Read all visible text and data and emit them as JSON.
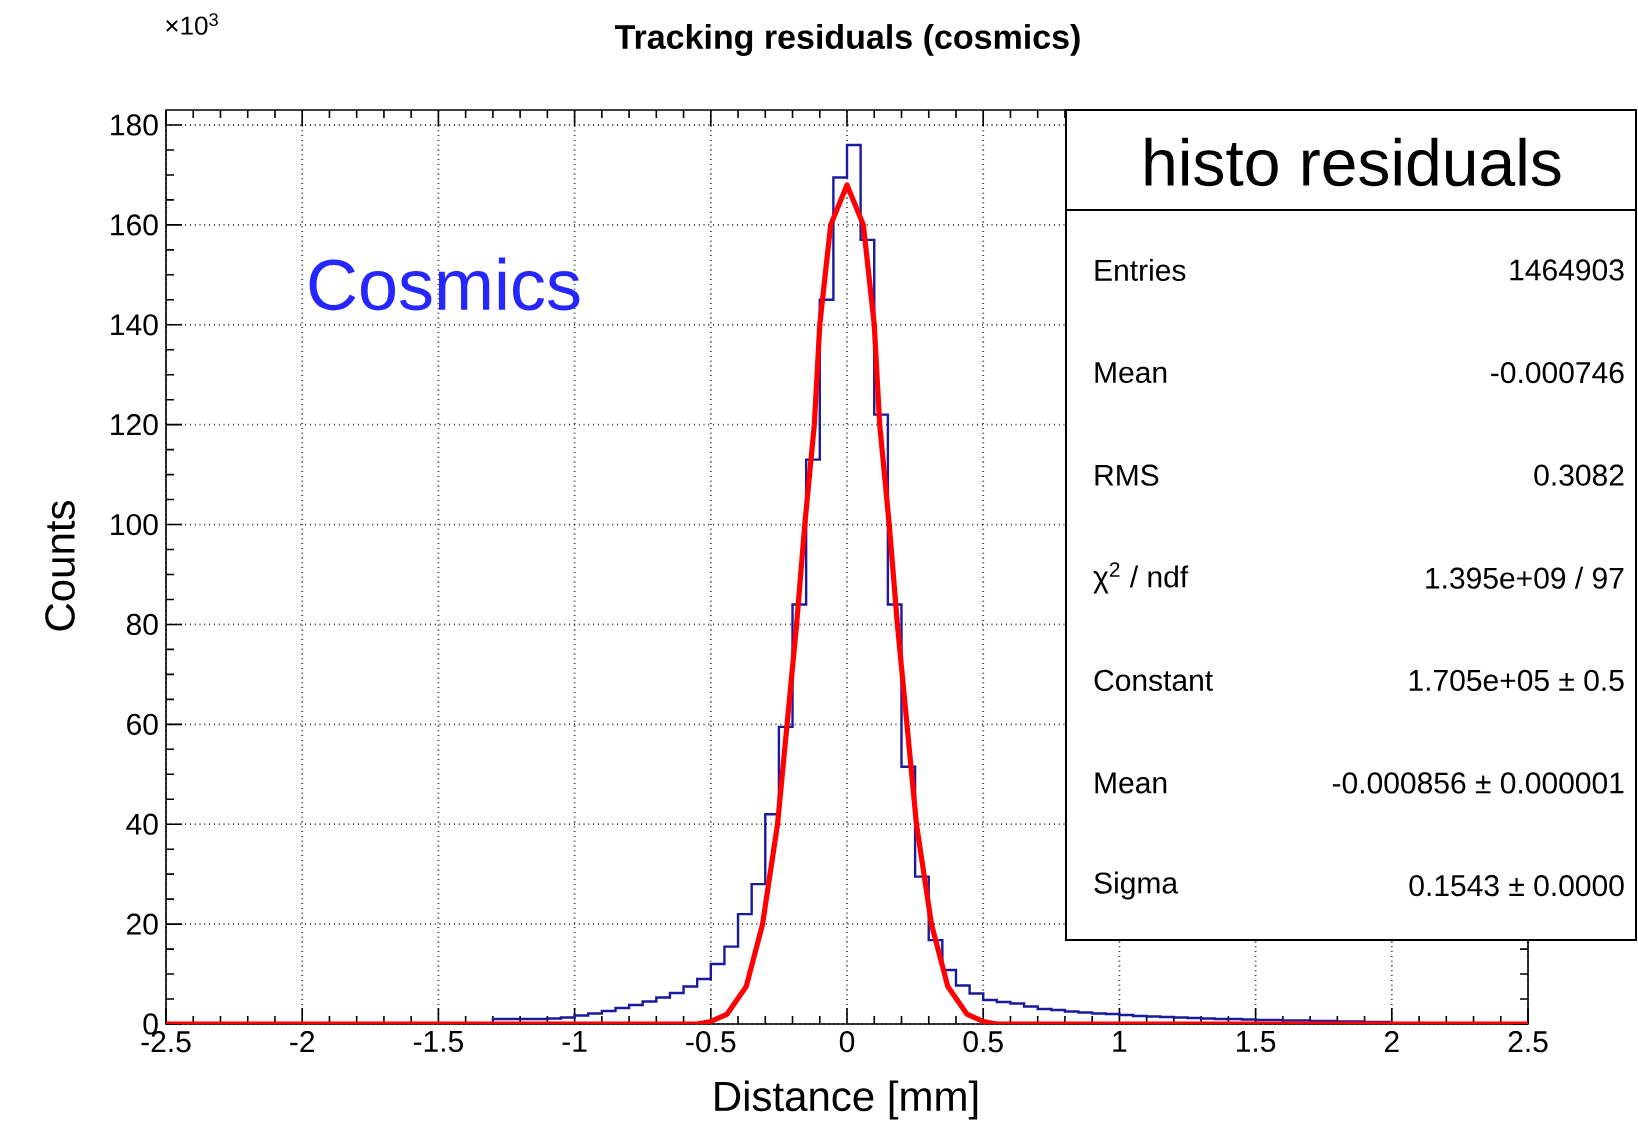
{
  "chart_data": {
    "type": "histogram",
    "title": "Tracking residuals  (cosmics)",
    "xlabel": "Distance   [mm]",
    "ylabel": "Counts",
    "series": [
      {
        "color": "#1a1a9c",
        "bins": [
          -2.5,
          -2.45,
          -2.4,
          -2.35,
          -2.3,
          -2.25,
          -2.2,
          -2.15,
          -2.1,
          -2.05,
          -2.0,
          -1.95,
          -1.9,
          -1.85,
          -1.8,
          -1.75,
          -1.7,
          -1.65,
          -1.6,
          -1.55,
          -1.5,
          -1.45,
          -1.4,
          -1.35,
          -1.3,
          -1.25,
          -1.2,
          -1.15,
          -1.1,
          -1.05,
          -1.0,
          -0.95,
          -0.9,
          -0.85,
          -0.8,
          -0.75,
          -0.7,
          -0.65,
          -0.6,
          -0.55,
          -0.5,
          -0.45,
          -0.4,
          -0.35,
          -0.3,
          -0.25,
          -0.2,
          -0.15,
          -0.1,
          -0.05,
          0.0,
          0.05,
          0.1,
          0.15,
          0.2,
          0.25,
          0.3,
          0.35,
          0.4,
          0.45,
          0.5,
          0.55,
          0.6,
          0.65,
          0.7,
          0.75,
          0.8,
          0.85,
          0.9,
          0.95,
          1.0,
          1.05,
          1.1,
          1.15,
          1.2,
          1.25,
          1.3,
          1.35,
          1.4,
          1.45,
          1.5,
          1.55,
          1.6,
          1.65,
          1.7,
          1.75,
          1.8,
          1.85,
          1.9,
          1.95,
          2.0,
          2.05,
          2.1,
          2.15,
          2.2,
          2.25,
          2.3,
          2.35,
          2.4,
          2.45,
          2.5
        ],
        "values": [
          0,
          0,
          0,
          0,
          0,
          0,
          0,
          0,
          0,
          0,
          0,
          0,
          0,
          0,
          0,
          0,
          0,
          0,
          0,
          0,
          0,
          0,
          0,
          0,
          1,
          1,
          1,
          1,
          1.1,
          1.3,
          1.7,
          2.1,
          2.6,
          3.2,
          3.8,
          4.5,
          5.3,
          6.2,
          7.5,
          9,
          12,
          15.5,
          22,
          28,
          42,
          59.5,
          84,
          113,
          145,
          169.5,
          176,
          157,
          122,
          84,
          51.5,
          29.5,
          16.8,
          10.8,
          7.7,
          6.1,
          4.8,
          4.4,
          4.1,
          3.5,
          3,
          2.8,
          2.5,
          2.3,
          2.1,
          2,
          1.8,
          1.6,
          1.5,
          1.4,
          1.3,
          1.2,
          1.1,
          1,
          1,
          0.9,
          0.8,
          0.8,
          0.7,
          0.7,
          0.6,
          0.6,
          0.5,
          0.5,
          0.4,
          0.4,
          0,
          0,
          0,
          0,
          0,
          0,
          0,
          0,
          0,
          0
        ]
      },
      {
        "type": "line",
        "color": "#ff0000",
        "x": [
          -2.5,
          -0.55,
          -0.5,
          -0.44,
          -0.37,
          -0.31,
          -0.255,
          -0.22,
          -0.185,
          -0.155,
          -0.12,
          -0.1,
          -0.06,
          0,
          0.06,
          0.1,
          0.12,
          0.155,
          0.185,
          0.22,
          0.255,
          0.31,
          0.37,
          0.44,
          0.5,
          0.55,
          2.5
        ],
        "values": [
          0,
          0,
          0.5,
          2,
          7.5,
          20,
          40,
          60,
          80,
          100,
          120,
          140,
          160,
          168,
          160,
          140,
          120,
          100,
          80,
          60,
          40,
          20,
          7.5,
          2,
          0.5,
          0,
          0
        ]
      }
    ],
    "xlim": [
      -2.5,
      2.5
    ],
    "xticks": [
      -2.5,
      -2,
      -1.5,
      -1,
      -0.5,
      0,
      0.5,
      1,
      1.5,
      2,
      2.5
    ],
    "ylim": [
      0,
      183
    ],
    "yticks": [
      0,
      20,
      40,
      60,
      80,
      100,
      120,
      140,
      160,
      180
    ],
    "grid": true,
    "annotations": [
      "×10$^{3}$",
      "Cosmics",
      "histo residuals",
      "Entries",
      "1464903",
      "Mean",
      "-0.000746",
      "RMS",
      "0.3082",
      "χ$^{2}$ / ndf",
      "1.395e+09 / 97",
      "Constant",
      "1.705e+05 ± 0.5",
      "Mean",
      "-0.000856 ± 0.000001",
      "Sigma",
      "0.1543 ± 0.0000"
    ]
  }
}
